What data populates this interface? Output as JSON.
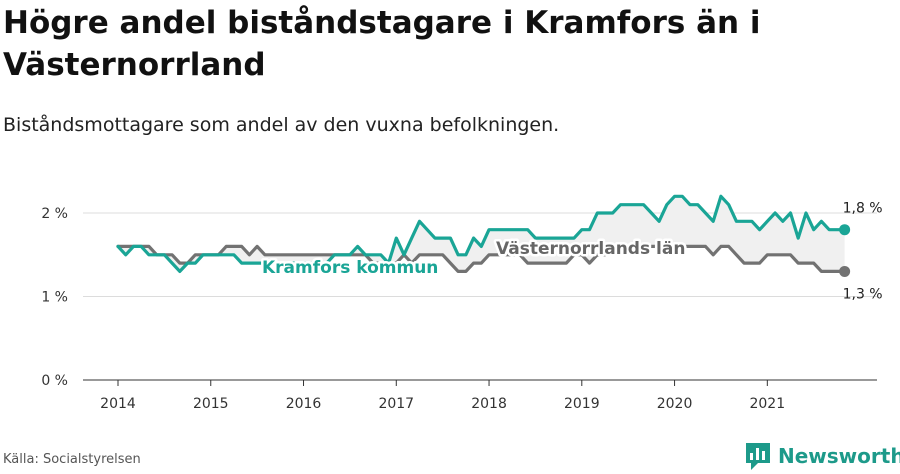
{
  "title": "Högre andel biståndstagare i Kramfors än i Västernorrland",
  "subtitle": "Biståndsmottagare som andel av den vuxna befolkningen.",
  "source": "Källa: Socialstyrelsen",
  "brand": "Newsworthy",
  "colors": {
    "kramfors": "#1aa596",
    "lan": "#727272",
    "brand": "#1d9a8a",
    "band": "#f0f0f0"
  },
  "chart_data": {
    "type": "line",
    "x_start": "2014-01",
    "x_step": "month",
    "ylim": [
      0,
      2.1
    ],
    "yticks": [
      0,
      1,
      2
    ],
    "ytick_labels": [
      "0 %",
      "1 %",
      "2 %"
    ],
    "xtick_labels": [
      "2014",
      "2015",
      "2016",
      "2017",
      "2018",
      "2019",
      "2020",
      "2021"
    ],
    "series": [
      {
        "name": "Kramfors kommun",
        "values": [
          1.6,
          1.5,
          1.6,
          1.6,
          1.5,
          1.5,
          1.5,
          1.4,
          1.3,
          1.4,
          1.4,
          1.5,
          1.5,
          1.5,
          1.5,
          1.5,
          1.4,
          1.4,
          1.4,
          1.4,
          1.4,
          1.4,
          1.4,
          1.4,
          1.4,
          1.4,
          1.4,
          1.4,
          1.5,
          1.5,
          1.5,
          1.6,
          1.5,
          1.5,
          1.5,
          1.4,
          1.7,
          1.5,
          1.7,
          1.9,
          1.8,
          1.7,
          1.7,
          1.7,
          1.5,
          1.5,
          1.7,
          1.6,
          1.8,
          1.8,
          1.8,
          1.8,
          1.8,
          1.8,
          1.7,
          1.7,
          1.7,
          1.7,
          1.7,
          1.7,
          1.8,
          1.8,
          2.0,
          2.0,
          2.0,
          2.1,
          2.1,
          2.1,
          2.1,
          2.0,
          1.9,
          2.1,
          2.2,
          2.2,
          2.1,
          2.1,
          2.0,
          1.9,
          2.2,
          2.1,
          1.9,
          1.9,
          1.9,
          1.8,
          1.9,
          2.0,
          1.9,
          2.0,
          1.7,
          2.0,
          1.8,
          1.9,
          1.8,
          1.8,
          1.8
        ],
        "end_label": "1,8 %"
      },
      {
        "name": "Västernorrlands län",
        "values": [
          1.6,
          1.6,
          1.6,
          1.6,
          1.6,
          1.5,
          1.5,
          1.5,
          1.4,
          1.4,
          1.5,
          1.5,
          1.5,
          1.5,
          1.6,
          1.6,
          1.6,
          1.5,
          1.6,
          1.5,
          1.5,
          1.5,
          1.5,
          1.5,
          1.5,
          1.5,
          1.5,
          1.5,
          1.5,
          1.5,
          1.5,
          1.5,
          1.5,
          1.4,
          1.4,
          1.4,
          1.4,
          1.5,
          1.4,
          1.5,
          1.5,
          1.5,
          1.5,
          1.4,
          1.3,
          1.3,
          1.4,
          1.4,
          1.5,
          1.5,
          1.5,
          1.5,
          1.5,
          1.4,
          1.4,
          1.4,
          1.4,
          1.4,
          1.4,
          1.5,
          1.5,
          1.4,
          1.5,
          1.5,
          1.6,
          1.6,
          1.6,
          1.6,
          1.6,
          1.6,
          1.6,
          1.6,
          1.6,
          1.6,
          1.6,
          1.6,
          1.6,
          1.5,
          1.6,
          1.6,
          1.5,
          1.4,
          1.4,
          1.4,
          1.5,
          1.5,
          1.5,
          1.5,
          1.4,
          1.4,
          1.4,
          1.3,
          1.3,
          1.3,
          1.3
        ],
        "end_label": "1,3 %"
      }
    ]
  }
}
